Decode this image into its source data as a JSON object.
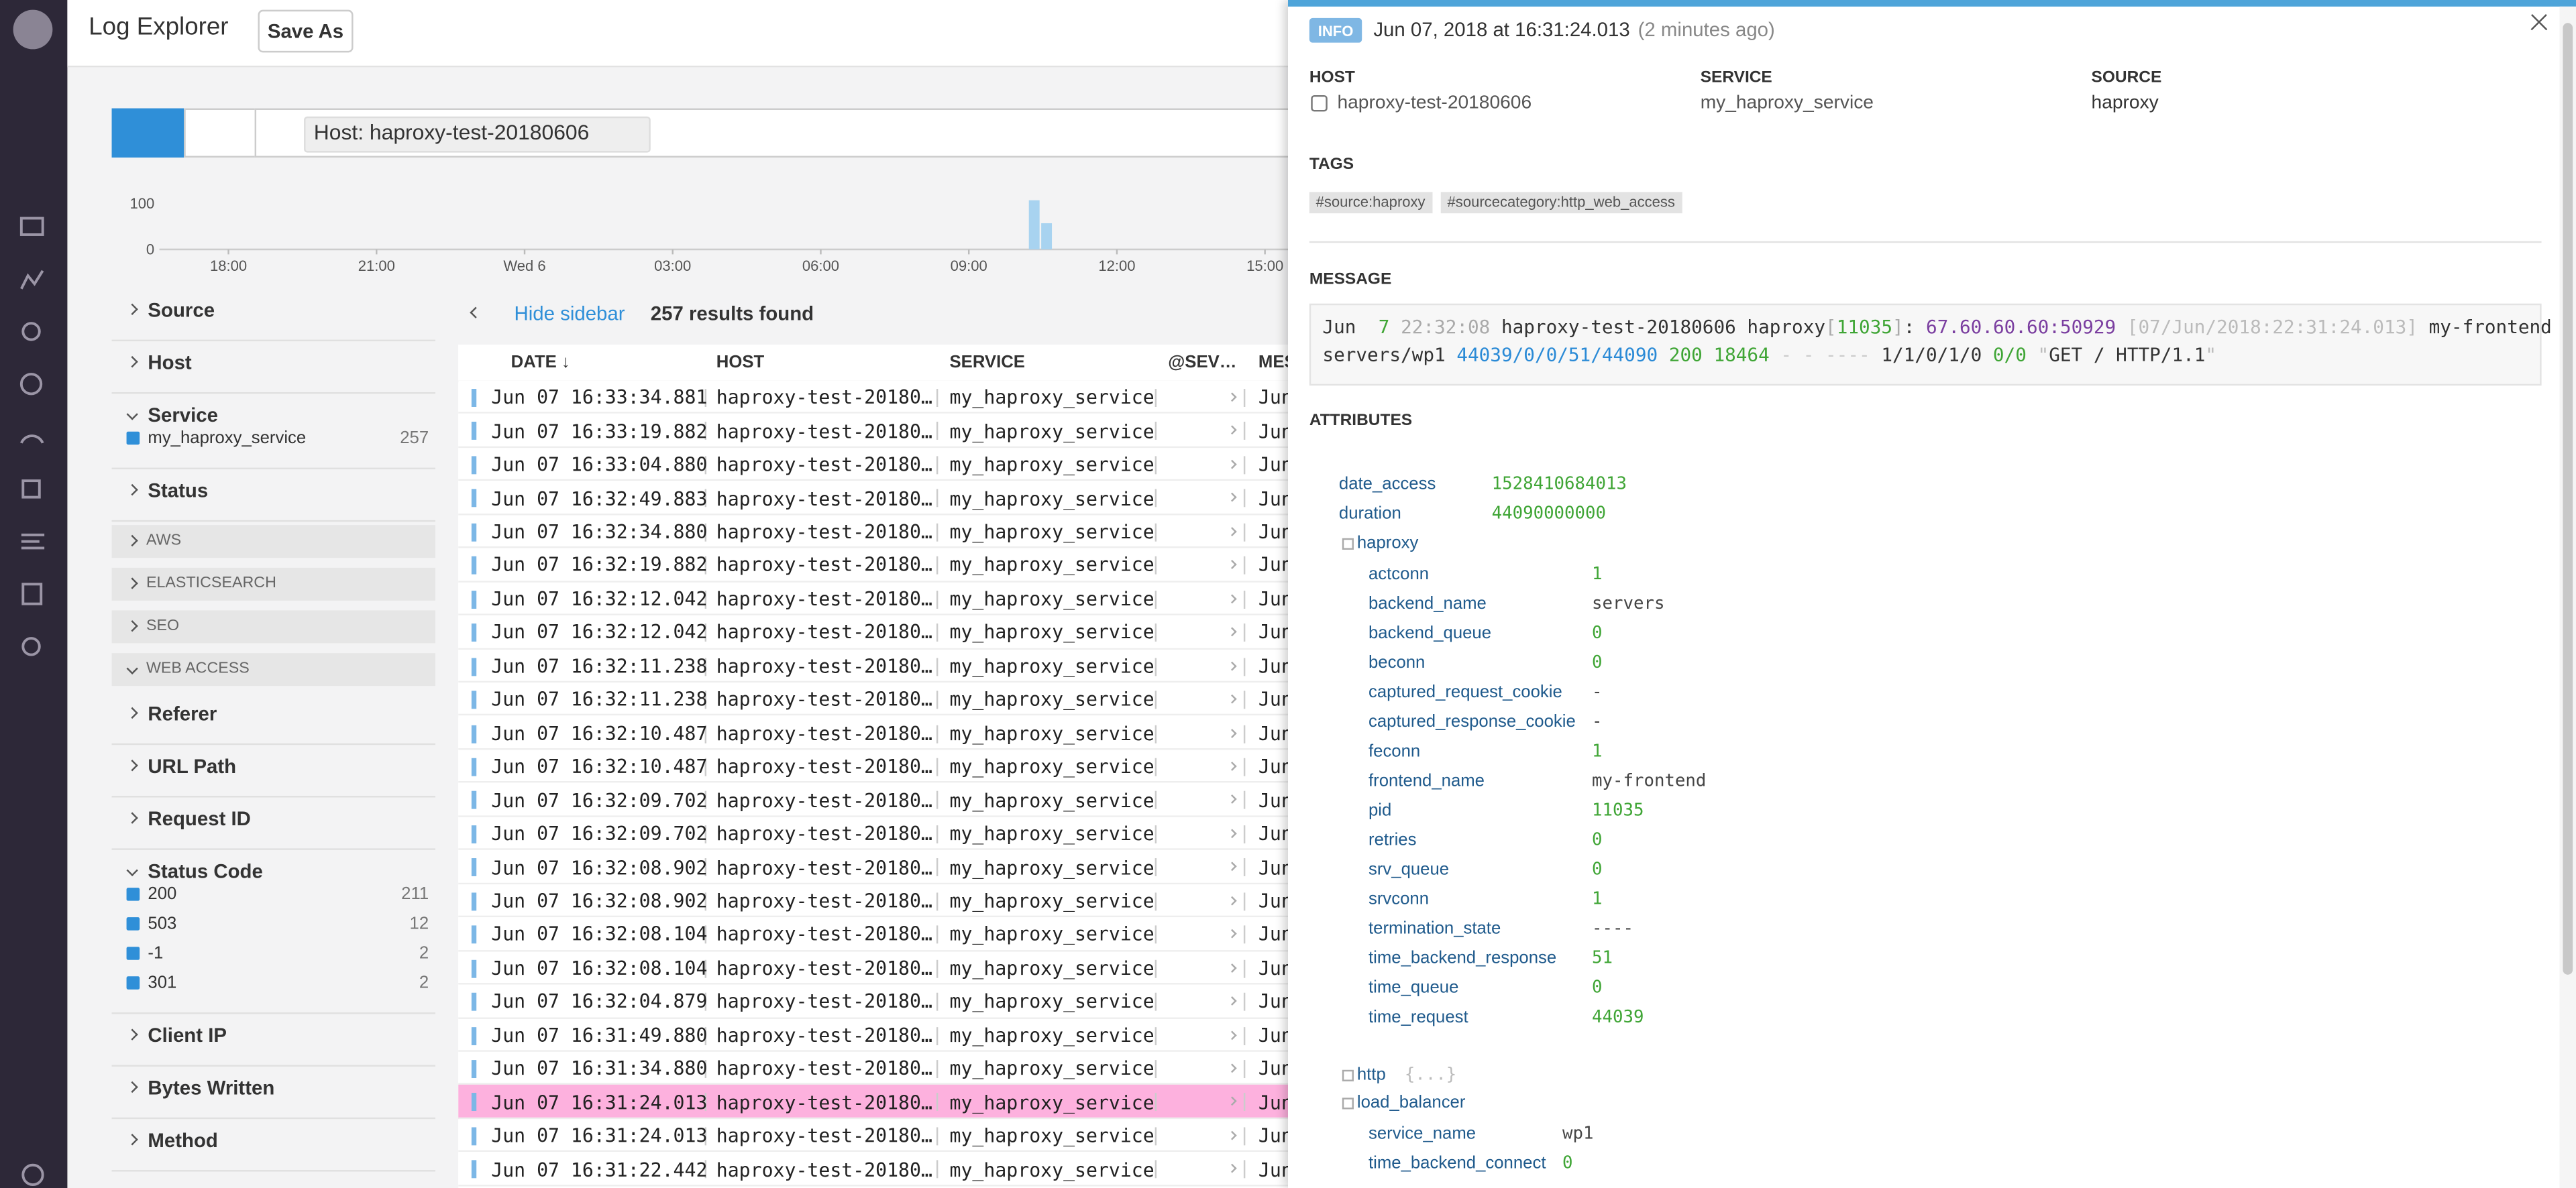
{
  "header": {
    "title": "Log Explorer",
    "save": "Save As"
  },
  "search": {
    "query": "Host: haproxy-test-20180606"
  },
  "histogram": {
    "ylim": [
      0,
      110
    ],
    "yticks": [
      0,
      100
    ],
    "xlim": [
      16.6,
      39.5
    ],
    "xticks": [
      {
        "value": 18,
        "label": "18:00"
      },
      {
        "value": 21,
        "label": "21:00"
      },
      {
        "value": 24,
        "label": "Wed 6"
      },
      {
        "value": 27,
        "label": "03:00"
      },
      {
        "value": 30,
        "label": "06:00"
      },
      {
        "value": 33,
        "label": "09:00"
      },
      {
        "value": 36,
        "label": "12:00"
      },
      {
        "value": 39,
        "label": "15:00"
      }
    ],
    "bins": [
      34.2,
      34.45,
      34.7
    ],
    "counts": [
      107,
      57
    ],
    "color": "#a8d3f0"
  },
  "facets": [
    {
      "label": "Source"
    },
    {
      "label": "Host"
    },
    {
      "label": "Service",
      "open": true,
      "items": [
        {
          "label": "my_haproxy_service",
          "count": 257
        }
      ]
    },
    {
      "label": "Status"
    },
    {
      "group": "AWS"
    },
    {
      "group": "ELASTICSEARCH"
    },
    {
      "group": "SEO"
    },
    {
      "group": "WEB ACCESS",
      "open": true
    },
    {
      "label": "Referer"
    },
    {
      "label": "URL Path"
    },
    {
      "label": "Request ID"
    },
    {
      "label": "Status Code",
      "open": true,
      "items": [
        {
          "label": "200",
          "count": 211
        },
        {
          "label": "503",
          "count": 12
        },
        {
          "label": "-1",
          "count": 2
        },
        {
          "label": "301",
          "count": 2
        }
      ]
    },
    {
      "label": "Client IP"
    },
    {
      "label": "Bytes Written"
    },
    {
      "label": "Method"
    }
  ],
  "results": {
    "toggle": "Hide sidebar",
    "count": "257 results found"
  },
  "table": {
    "columns": [
      "DATE ↓",
      "HOST",
      "SERVICE",
      "@SEV…",
      "MES"
    ],
    "selected": 21,
    "rows": [
      [
        "Jun 07 16:33:34.881",
        "haproxy-test-20180…",
        "my_haproxy_service",
        "Jun"
      ],
      [
        "Jun 07 16:33:19.882",
        "haproxy-test-20180…",
        "my_haproxy_service",
        "Jun"
      ],
      [
        "Jun 07 16:33:04.880",
        "haproxy-test-20180…",
        "my_haproxy_service",
        "Jun"
      ],
      [
        "Jun 07 16:32:49.883",
        "haproxy-test-20180…",
        "my_haproxy_service",
        "Jun"
      ],
      [
        "Jun 07 16:32:34.880",
        "haproxy-test-20180…",
        "my_haproxy_service",
        "Jun"
      ],
      [
        "Jun 07 16:32:19.882",
        "haproxy-test-20180…",
        "my_haproxy_service",
        "Jun"
      ],
      [
        "Jun 07 16:32:12.042",
        "haproxy-test-20180…",
        "my_haproxy_service",
        "Jun"
      ],
      [
        "Jun 07 16:32:12.042",
        "haproxy-test-20180…",
        "my_haproxy_service",
        "Jun"
      ],
      [
        "Jun 07 16:32:11.238",
        "haproxy-test-20180…",
        "my_haproxy_service",
        "Jun"
      ],
      [
        "Jun 07 16:32:11.238",
        "haproxy-test-20180…",
        "my_haproxy_service",
        "Jun"
      ],
      [
        "Jun 07 16:32:10.487",
        "haproxy-test-20180…",
        "my_haproxy_service",
        "Jun"
      ],
      [
        "Jun 07 16:32:10.487",
        "haproxy-test-20180…",
        "my_haproxy_service",
        "Jun"
      ],
      [
        "Jun 07 16:32:09.702",
        "haproxy-test-20180…",
        "my_haproxy_service",
        "Jun"
      ],
      [
        "Jun 07 16:32:09.702",
        "haproxy-test-20180…",
        "my_haproxy_service",
        "Jun"
      ],
      [
        "Jun 07 16:32:08.902",
        "haproxy-test-20180…",
        "my_haproxy_service",
        "Jun"
      ],
      [
        "Jun 07 16:32:08.902",
        "haproxy-test-20180…",
        "my_haproxy_service",
        "Jun"
      ],
      [
        "Jun 07 16:32:08.104",
        "haproxy-test-20180…",
        "my_haproxy_service",
        "Jun"
      ],
      [
        "Jun 07 16:32:08.104",
        "haproxy-test-20180…",
        "my_haproxy_service",
        "Jun"
      ],
      [
        "Jun 07 16:32:04.879",
        "haproxy-test-20180…",
        "my_haproxy_service",
        "Jun"
      ],
      [
        "Jun 07 16:31:49.880",
        "haproxy-test-20180…",
        "my_haproxy_service",
        "Jun"
      ],
      [
        "Jun 07 16:31:34.880",
        "haproxy-test-20180…",
        "my_haproxy_service",
        "Jun"
      ],
      [
        "Jun 07 16:31:24.013",
        "haproxy-test-20180…",
        "my_haproxy_service",
        "Jun"
      ],
      [
        "Jun 07 16:31:24.013",
        "haproxy-test-20180…",
        "my_haproxy_service",
        "Jun"
      ],
      [
        "Jun 07 16:31:22.442",
        "haproxy-test-20180…",
        "my_haproxy_service",
        "Jun"
      ]
    ]
  },
  "detail": {
    "status": "INFO",
    "timestamp": "Jun 07, 2018 at 16:31:24.013",
    "ago": "(2 minutes ago)",
    "fields": [
      {
        "label": "HOST",
        "value": "haproxy-test-20180606"
      },
      {
        "label": "SERVICE",
        "value": "my_haproxy_service"
      },
      {
        "label": "SOURCE",
        "value": "haproxy"
      }
    ],
    "tags_label": "TAGS",
    "tags": [
      "#source:haproxy",
      "#sourcecategory:http_web_access"
    ],
    "message_label": "MESSAGE",
    "message": [
      [
        {
          "text": "Jun ",
          "color": "#333"
        },
        {
          "text": " 7",
          "color": "#3fa535"
        },
        {
          "text": " 22:32:08",
          "color": "#aaa"
        },
        {
          "text": " haproxy-test-20180606 haproxy",
          "color": "#333"
        },
        {
          "text": "[",
          "color": "#aaa"
        },
        {
          "text": "11035",
          "color": "#3fa535"
        },
        {
          "text": "]",
          "color": "#aaa"
        },
        {
          "text": ": ",
          "color": "#333"
        },
        {
          "text": "67.60.60.60:50929",
          "color": "#7b3fa0"
        },
        {
          "text": " [07/Jun/2018:22:31:24.013]",
          "color": "#bbb"
        },
        {
          "text": " my-frontend",
          "color": "#333"
        }
      ],
      [
        {
          "text": "servers/wp1 ",
          "color": "#333"
        },
        {
          "text": "44039/0/0/51/44090",
          "color": "#2a8ad6"
        },
        {
          "text": " 200 18464",
          "color": "#3fa535"
        },
        {
          "text": " - - ----",
          "color": "#ccc"
        },
        {
          "text": " 1/1/0/1/0",
          "color": "#333"
        },
        {
          "text": " 0/0",
          "color": "#3fa535"
        },
        {
          "text": " \"",
          "color": "#bbb"
        },
        {
          "text": "GET / HTTP/1.1",
          "color": "#333"
        },
        {
          "text": "\"",
          "color": "#bbb"
        }
      ]
    ],
    "attributes_label": "ATTRIBUTES",
    "attributes": [
      {
        "key": "date_access",
        "value": 1528410684013
      },
      {
        "key": "duration",
        "value": 44090000000
      },
      {
        "key": "haproxy",
        "children": [
          {
            "key": "actconn",
            "value": 1
          },
          {
            "key": "backend_name",
            "value": "servers"
          },
          {
            "key": "backend_queue",
            "value": 0
          },
          {
            "key": "beconn",
            "value": 0
          },
          {
            "key": "captured_request_cookie",
            "value": "-"
          },
          {
            "key": "captured_response_cookie",
            "value": "-"
          },
          {
            "key": "feconn",
            "value": 1
          },
          {
            "key": "frontend_name",
            "value": "my-frontend"
          },
          {
            "key": "pid",
            "value": 11035
          },
          {
            "key": "retries",
            "value": 0
          },
          {
            "key": "srv_queue",
            "value": 0
          },
          {
            "key": "srvconn",
            "value": 1
          },
          {
            "key": "termination_state",
            "value": "----"
          },
          {
            "key": "time_backend_response",
            "value": 51
          },
          {
            "key": "time_queue",
            "value": 0
          },
          {
            "key": "time_request",
            "value": 44039
          }
        ]
      },
      {
        "key": "http",
        "value": "{...}"
      },
      {
        "key": "load_balancer",
        "children": [
          {
            "key": "service_name",
            "value": "wp1"
          },
          {
            "key": "time_backend_connect",
            "value": 0
          }
        ]
      }
    ]
  }
}
